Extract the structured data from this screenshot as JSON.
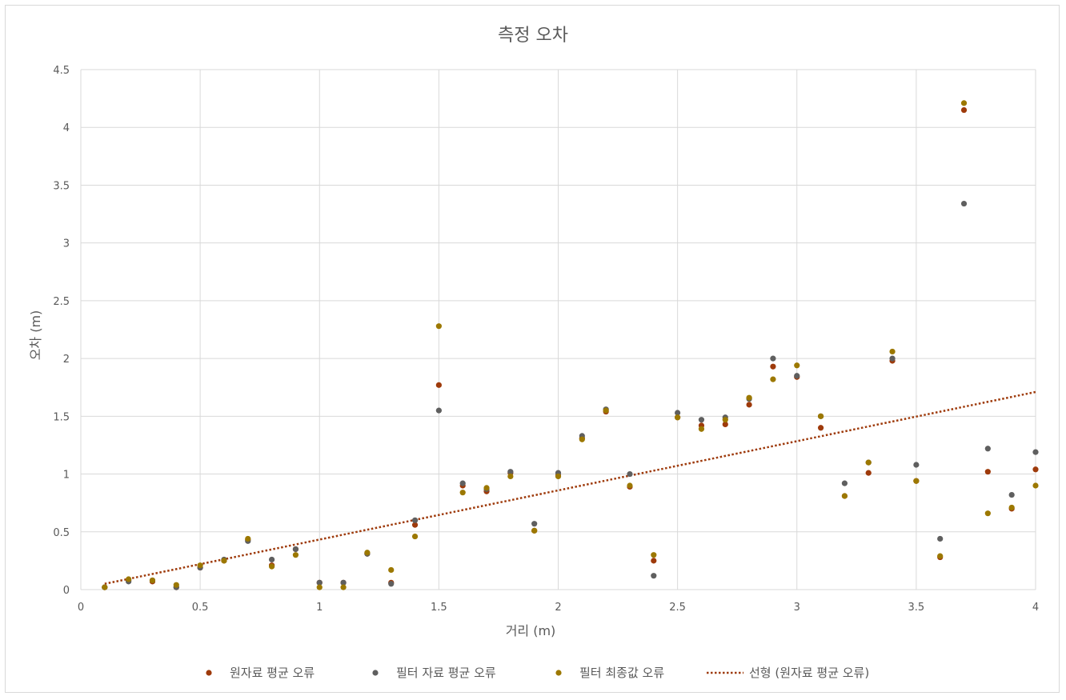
{
  "chart_data": {
    "type": "scatter",
    "title": "측정 오차",
    "xlabel": "거리 (m)",
    "ylabel": "오차 (m)",
    "xlim": [
      0,
      4
    ],
    "ylim": [
      0,
      4.5
    ],
    "x_ticks": [
      "0",
      "0.5",
      "1",
      "1.5",
      "2",
      "2.5",
      "3",
      "3.5",
      "4"
    ],
    "y_ticks": [
      "0",
      "0.5",
      "1",
      "1.5",
      "2",
      "2.5",
      "3",
      "3.5",
      "4",
      "4.5"
    ],
    "grid": true,
    "legend_position": "bottom",
    "series": [
      {
        "name": "원자료 평균 오류",
        "color": "#9e3a0b",
        "points": [
          [
            0.1,
            0.02
          ],
          [
            0.2,
            0.08
          ],
          [
            0.3,
            0.07
          ],
          [
            0.4,
            0.02
          ],
          [
            0.5,
            0.19
          ],
          [
            0.6,
            0.25
          ],
          [
            0.7,
            0.43
          ],
          [
            0.8,
            0.21
          ],
          [
            0.9,
            0.35
          ],
          [
            1.0,
            0.06
          ],
          [
            1.1,
            0.06
          ],
          [
            1.2,
            0.31
          ],
          [
            1.3,
            0.06
          ],
          [
            1.4,
            0.56
          ],
          [
            1.5,
            1.77
          ],
          [
            1.6,
            0.9
          ],
          [
            1.7,
            0.85
          ],
          [
            1.8,
            1.01
          ],
          [
            1.9,
            0.51
          ],
          [
            2.0,
            0.99
          ],
          [
            2.1,
            1.31
          ],
          [
            2.2,
            1.54
          ],
          [
            2.3,
            0.89
          ],
          [
            2.4,
            0.25
          ],
          [
            2.5,
            1.49
          ],
          [
            2.6,
            1.42
          ],
          [
            2.7,
            1.43
          ],
          [
            2.8,
            1.6
          ],
          [
            2.9,
            1.93
          ],
          [
            3.0,
            1.84
          ],
          [
            3.1,
            1.4
          ],
          [
            3.2,
            0.81
          ],
          [
            3.3,
            1.01
          ],
          [
            3.4,
            1.98
          ],
          [
            3.5,
            0.94
          ],
          [
            3.6,
            0.28
          ],
          [
            3.7,
            4.15
          ],
          [
            3.8,
            1.02
          ],
          [
            3.9,
            0.7
          ],
          [
            4.0,
            1.04
          ]
        ]
      },
      {
        "name": "필터 자료 평균 오류",
        "color": "#5f5f5f",
        "points": [
          [
            0.1,
            0.02
          ],
          [
            0.2,
            0.07
          ],
          [
            0.3,
            0.08
          ],
          [
            0.4,
            0.02
          ],
          [
            0.5,
            0.19
          ],
          [
            0.6,
            0.26
          ],
          [
            0.7,
            0.42
          ],
          [
            0.8,
            0.26
          ],
          [
            0.9,
            0.35
          ],
          [
            1.0,
            0.06
          ],
          [
            1.1,
            0.06
          ],
          [
            1.2,
            0.31
          ],
          [
            1.3,
            0.05
          ],
          [
            1.4,
            0.6
          ],
          [
            1.5,
            1.55
          ],
          [
            1.6,
            0.92
          ],
          [
            1.7,
            0.87
          ],
          [
            1.8,
            1.02
          ],
          [
            1.9,
            0.57
          ],
          [
            2.0,
            1.01
          ],
          [
            2.1,
            1.33
          ],
          [
            2.2,
            1.56
          ],
          [
            2.3,
            1.0
          ],
          [
            2.4,
            0.12
          ],
          [
            2.5,
            1.53
          ],
          [
            2.6,
            1.47
          ],
          [
            2.7,
            1.49
          ],
          [
            2.8,
            1.65
          ],
          [
            2.9,
            2.0
          ],
          [
            3.0,
            1.85
          ],
          [
            3.1,
            1.5
          ],
          [
            3.2,
            0.92
          ],
          [
            3.3,
            1.1
          ],
          [
            3.4,
            2.0
          ],
          [
            3.5,
            1.08
          ],
          [
            3.6,
            0.44
          ],
          [
            3.7,
            3.34
          ],
          [
            3.8,
            1.22
          ],
          [
            3.9,
            0.82
          ],
          [
            4.0,
            1.19
          ]
        ]
      },
      {
        "name": "필터 최종값 오류",
        "color": "#9c7800",
        "points": [
          [
            0.1,
            0.02
          ],
          [
            0.2,
            0.09
          ],
          [
            0.3,
            0.08
          ],
          [
            0.4,
            0.04
          ],
          [
            0.5,
            0.21
          ],
          [
            0.6,
            0.25
          ],
          [
            0.7,
            0.44
          ],
          [
            0.8,
            0.2
          ],
          [
            0.9,
            0.3
          ],
          [
            1.0,
            0.02
          ],
          [
            1.1,
            0.02
          ],
          [
            1.2,
            0.32
          ],
          [
            1.3,
            0.17
          ],
          [
            1.4,
            0.46
          ],
          [
            1.5,
            2.28
          ],
          [
            1.6,
            0.84
          ],
          [
            1.7,
            0.88
          ],
          [
            1.8,
            0.98
          ],
          [
            1.9,
            0.51
          ],
          [
            2.0,
            0.98
          ],
          [
            2.1,
            1.3
          ],
          [
            2.2,
            1.55
          ],
          [
            2.3,
            0.9
          ],
          [
            2.4,
            0.3
          ],
          [
            2.5,
            1.49
          ],
          [
            2.6,
            1.39
          ],
          [
            2.7,
            1.47
          ],
          [
            2.8,
            1.66
          ],
          [
            2.9,
            1.82
          ],
          [
            3.0,
            1.94
          ],
          [
            3.1,
            1.5
          ],
          [
            3.2,
            0.81
          ],
          [
            3.3,
            1.1
          ],
          [
            3.4,
            2.06
          ],
          [
            3.5,
            0.94
          ],
          [
            3.6,
            0.29
          ],
          [
            3.7,
            4.21
          ],
          [
            3.8,
            0.66
          ],
          [
            3.9,
            0.71
          ],
          [
            4.0,
            0.9
          ]
        ]
      }
    ],
    "trendline": {
      "name": "선형 (원자료 평균 오류)",
      "color": "#9e3a0b",
      "points": [
        [
          0.1,
          0.05
        ],
        [
          4.0,
          1.71
        ]
      ]
    }
  }
}
